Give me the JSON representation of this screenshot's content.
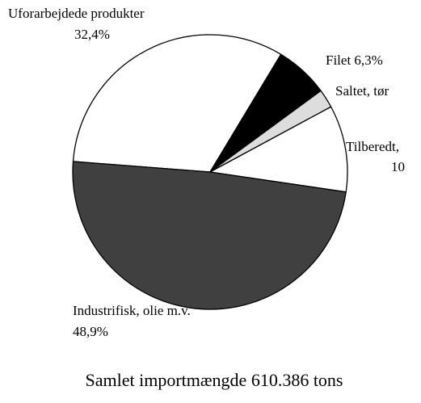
{
  "chart_data": {
    "type": "pie",
    "title": "Samlet importmængde 610.386 tons",
    "categories": [
      "Uforarbejdede produkter",
      "Filet",
      "Saltet, tør",
      "Tilberedt,",
      "Industrifisk, olie m.v."
    ],
    "values": [
      32.4,
      6.3,
      2.2,
      10.2,
      48.9
    ],
    "value_labels": [
      "32,4%",
      "6,3%",
      null,
      "10",
      "48,9%"
    ],
    "colors": [
      "#ffffff",
      "#000000",
      "#dddddd",
      "#ffffff",
      "#404040"
    ]
  }
}
